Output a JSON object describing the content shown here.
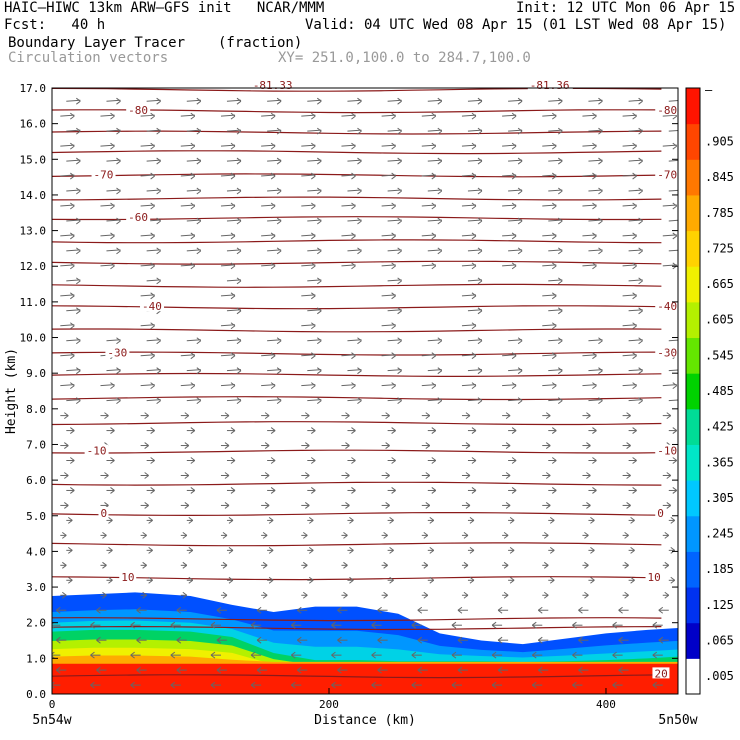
{
  "header": {
    "line1_left": "HAIC—HIWC 13km ARW—GFS init   NCAR/MMM",
    "line1_right": "Init: 12 UTC Mon 06 Apr 15",
    "line2_left": "Fcst:   40 h",
    "line2_right": "Valid: 04 UTC Wed 08 Apr 15 (01 LST Wed 08 Apr 15)",
    "field_name": "Boundary Layer Tracer",
    "field_units": "(fraction)",
    "overlay_name": "Circulation vectors",
    "xy_range": "XY= 251.0,100.0 to 284.7,100.0"
  },
  "chart_data": {
    "type": "heatmap",
    "title": "Boundary Layer Tracer (fraction)",
    "xlabel": "Distance (km)",
    "ylabel": "Height (km)",
    "xlim": [
      0,
      452
    ],
    "ylim": [
      0,
      17
    ],
    "x_ticks": [
      0,
      200,
      400
    ],
    "x_tick_labels": [
      "0",
      "200",
      "400"
    ],
    "x_end_labels": [
      "5n54w",
      "5n50w"
    ],
    "y_ticks": [
      0,
      1,
      2,
      3,
      4,
      5,
      6,
      7,
      8,
      9,
      10,
      11,
      12,
      13,
      14,
      15,
      16,
      17
    ],
    "y_tick_labels": [
      "0.0",
      "1.0",
      "2.0",
      "3.0",
      "4.0",
      "5.0",
      "6.0",
      "7.0",
      "8.0",
      "9.0",
      "10.0",
      "11.0",
      "12.0",
      "13.0",
      "14.0",
      "15.0",
      "16.0",
      "17.0"
    ],
    "colorbar": {
      "labels": [
        ".005",
        ".065",
        ".125",
        ".185",
        ".245",
        ".305",
        ".365",
        ".425",
        ".485",
        ".545",
        ".605",
        ".665",
        ".725",
        ".785",
        ".845",
        ".905"
      ],
      "top_label": "–",
      "colors": [
        "#ffffff",
        "#0000c8",
        "#0032f0",
        "#0064ff",
        "#0096ff",
        "#00c8ff",
        "#00e6c8",
        "#00dc96",
        "#00d200",
        "#64e600",
        "#b4f000",
        "#f0f000",
        "#ffd200",
        "#ffaa00",
        "#ff7800",
        "#ff4600",
        "#ff1400"
      ]
    },
    "tracer_profile": {
      "x": [
        0,
        30,
        60,
        100,
        130,
        160,
        190,
        220,
        250,
        280,
        310,
        340,
        370,
        400,
        430,
        452
      ],
      "top_km": [
        2.75,
        2.8,
        2.85,
        2.75,
        2.5,
        2.3,
        2.45,
        2.45,
        2.25,
        1.7,
        1.5,
        1.4,
        1.55,
        1.7,
        1.8,
        1.85
      ],
      "warm_top_km": [
        1.75,
        1.8,
        1.8,
        1.75,
        1.6,
        1.15,
        0.95,
        0.95,
        0.92,
        0.92,
        0.92,
        0.9,
        0.92,
        0.95,
        1.0,
        1.05
      ],
      "red_top_km": [
        0.85,
        0.85,
        0.85,
        0.85,
        0.85,
        0.85,
        0.85,
        0.85,
        0.85,
        0.85,
        0.85,
        0.85,
        0.85,
        0.85,
        0.85,
        0.85
      ]
    },
    "temperature_contours": {
      "levels_km": [
        0.5,
        1.85,
        2.1,
        3.25,
        4.2,
        5.05,
        5.9,
        6.8,
        7.6,
        8.3,
        8.95,
        9.55,
        10.2,
        10.85,
        11.45,
        12.1,
        12.7,
        13.35,
        13.9,
        14.55,
        15.2,
        15.75,
        16.35,
        16.95
      ],
      "labels": [
        {
          "value": "20",
          "km": 0.55,
          "x": 435
        },
        {
          "value": "10",
          "km": 3.25,
          "x": 50
        },
        {
          "value": "10",
          "km": 3.25,
          "x": 430
        },
        {
          "value": "0",
          "km": 5.05,
          "x": 35
        },
        {
          "value": "0",
          "km": 5.05,
          "x": 437
        },
        {
          "value": "-10",
          "km": 6.8,
          "x": 25
        },
        {
          "value": "-10",
          "km": 6.8,
          "x": 437
        },
        {
          "value": "-30",
          "km": 9.55,
          "x": 40
        },
        {
          "value": "-30",
          "km": 9.55,
          "x": 437
        },
        {
          "value": "-40",
          "km": 10.85,
          "x": 65
        },
        {
          "value": "-40",
          "km": 10.85,
          "x": 437
        },
        {
          "value": "-60",
          "km": 13.35,
          "x": 55
        },
        {
          "value": "-70",
          "km": 14.55,
          "x": 30
        },
        {
          "value": "-70",
          "km": 14.55,
          "x": 437
        },
        {
          "value": "-80",
          "km": 16.35,
          "x": 55
        },
        {
          "value": "-80",
          "km": 16.35,
          "x": 437
        },
        {
          "value": "-81.33",
          "km": 17.05,
          "x": 145
        },
        {
          "value": "-81.36",
          "km": 17.05,
          "x": 345
        }
      ]
    },
    "circulation_vectors": {
      "description_free": true,
      "upper_direction": "eastward",
      "lower_direction": "westward"
    }
  }
}
